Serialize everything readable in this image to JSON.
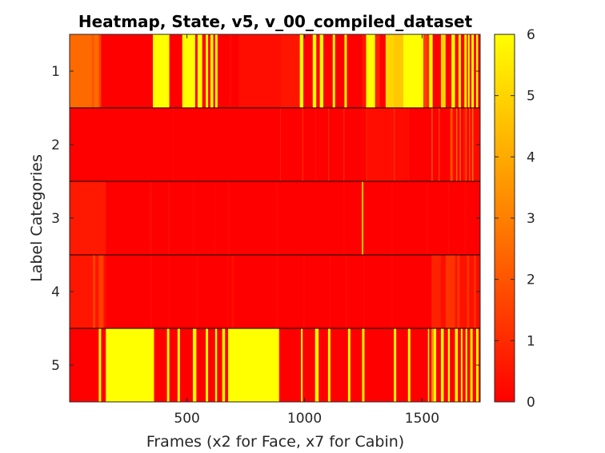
{
  "chart_data": {
    "type": "heatmap",
    "title": "Heatmap, State, v5, v_00_compiled_dataset",
    "xlabel": "Frames (x2 for Face, x7 for Cabin)",
    "ylabel": "Label Categories",
    "x_range": [
      1,
      1747
    ],
    "x_ticks": [
      500,
      1000,
      1500
    ],
    "x_tick_labels": [
      "500",
      "1000",
      "1500"
    ],
    "y_categories": [
      "1",
      "2",
      "3",
      "4",
      "5"
    ],
    "colorbar": {
      "range": [
        0,
        6
      ],
      "ticks": [
        0,
        1,
        2,
        3,
        4,
        5,
        6
      ],
      "tick_labels": [
        "0",
        "1",
        "2",
        "3",
        "4",
        "5",
        "6"
      ],
      "colormap": "autumn",
      "color_low": "#ff0000",
      "color_high": "#ffff00"
    },
    "rows": [
      {
        "category": "1",
        "segments": [
          [
            1,
            2.5
          ],
          [
            95,
            2.0
          ],
          [
            105,
            2.5
          ],
          [
            125,
            1.5
          ],
          [
            135,
            0
          ],
          [
            355,
            6
          ],
          [
            365,
            6
          ],
          [
            425,
            0
          ],
          [
            480,
            6
          ],
          [
            535,
            0
          ],
          [
            545,
            6
          ],
          [
            565,
            0
          ],
          [
            580,
            6
          ],
          [
            590,
            0
          ],
          [
            600,
            6
          ],
          [
            612,
            0
          ],
          [
            620,
            6
          ],
          [
            630,
            0
          ],
          [
            680,
            0.2
          ],
          [
            690,
            0
          ],
          [
            720,
            0.3
          ],
          [
            900,
            0.5
          ],
          [
            980,
            6
          ],
          [
            995,
            0
          ],
          [
            1035,
            6
          ],
          [
            1050,
            0
          ],
          [
            1065,
            6
          ],
          [
            1080,
            0
          ],
          [
            1120,
            6
          ],
          [
            1130,
            0
          ],
          [
            1170,
            6
          ],
          [
            1180,
            0
          ],
          [
            1245,
            0.5
          ],
          [
            1262,
            6
          ],
          [
            1280,
            6
          ],
          [
            1300,
            0.8
          ],
          [
            1320,
            0
          ],
          [
            1345,
            5
          ],
          [
            1380,
            4.7
          ],
          [
            1420,
            6
          ],
          [
            1505,
            1.5
          ],
          [
            1520,
            1.0
          ],
          [
            1530,
            6
          ],
          [
            1545,
            0
          ],
          [
            1580,
            5
          ],
          [
            1600,
            0
          ],
          [
            1625,
            6
          ],
          [
            1640,
            0
          ],
          [
            1655,
            6
          ],
          [
            1665,
            0
          ],
          [
            1680,
            6
          ],
          [
            1690,
            0
          ],
          [
            1695,
            6
          ],
          [
            1702,
            0
          ],
          [
            1710,
            6
          ],
          [
            1720,
            0
          ],
          [
            1730,
            6
          ],
          [
            1738,
            0
          ]
        ]
      },
      {
        "category": "2",
        "segments": [
          [
            1,
            0
          ],
          [
            441,
            0.2
          ],
          [
            444,
            0
          ],
          [
            896,
            0.8
          ],
          [
            899,
            0
          ],
          [
            990,
            0.8
          ],
          [
            995,
            0
          ],
          [
            1045,
            0.3
          ],
          [
            1050,
            0
          ],
          [
            1100,
            0.8
          ],
          [
            1105,
            0
          ],
          [
            1165,
            0.8
          ],
          [
            1170,
            0
          ],
          [
            1245,
            0.2
          ],
          [
            1250,
            0
          ],
          [
            1262,
            1.0
          ],
          [
            1265,
            0.3
          ],
          [
            1380,
            1.0
          ],
          [
            1385,
            0.2
          ],
          [
            1410,
            0.4
          ],
          [
            1415,
            0.2
          ],
          [
            1440,
            0.4
          ],
          [
            1445,
            0
          ],
          [
            1540,
            2.0
          ],
          [
            1545,
            0
          ],
          [
            1570,
            1.5
          ],
          [
            1575,
            0
          ],
          [
            1620,
            2.0
          ],
          [
            1630,
            0.2
          ],
          [
            1645,
            2.5
          ],
          [
            1650,
            0
          ],
          [
            1660,
            2.5
          ],
          [
            1665,
            0
          ],
          [
            1675,
            0.5
          ],
          [
            1685,
            2.0
          ],
          [
            1690,
            0
          ],
          [
            1700,
            2.0
          ],
          [
            1705,
            0
          ],
          [
            1712,
            2.5
          ],
          [
            1718,
            0.2
          ]
        ]
      },
      {
        "category": "3",
        "segments": [
          [
            1,
            0.6
          ],
          [
            155,
            0
          ],
          [
            342,
            0.2
          ],
          [
            350,
            0
          ],
          [
            420,
            0.2
          ],
          [
            425,
            0
          ],
          [
            525,
            0.2
          ],
          [
            530,
            0
          ],
          [
            615,
            0.2
          ],
          [
            620,
            0
          ],
          [
            675,
            0.2
          ],
          [
            680,
            0
          ],
          [
            880,
            0.2
          ],
          [
            885,
            0
          ],
          [
            1165,
            0.2
          ],
          [
            1170,
            0
          ],
          [
            1244,
            5
          ],
          [
            1250,
            0
          ],
          [
            1370,
            0.2
          ],
          [
            1375,
            0
          ],
          [
            1520,
            0.2
          ],
          [
            1525,
            0
          ],
          [
            1610,
            0.2
          ],
          [
            1615,
            0
          ],
          [
            1680,
            0.2
          ],
          [
            1685,
            0
          ]
        ]
      },
      {
        "category": "4",
        "segments": [
          [
            1,
            0.5
          ],
          [
            100,
            1.5
          ],
          [
            110,
            0.5
          ],
          [
            125,
            1.5
          ],
          [
            145,
            0.4
          ],
          [
            155,
            0
          ],
          [
            345,
            0.2
          ],
          [
            350,
            0
          ],
          [
            422,
            0.2
          ],
          [
            426,
            0
          ],
          [
            540,
            0.2
          ],
          [
            545,
            0
          ],
          [
            672,
            0.2
          ],
          [
            676,
            0
          ],
          [
            690,
            0.3
          ],
          [
            700,
            0
          ],
          [
            880,
            0.2
          ],
          [
            885,
            0
          ],
          [
            995,
            0.2
          ],
          [
            1000,
            0
          ],
          [
            1105,
            0.2
          ],
          [
            1110,
            0
          ],
          [
            1175,
            0.3
          ],
          [
            1180,
            0
          ],
          [
            1250,
            0.2
          ],
          [
            1255,
            0
          ],
          [
            1370,
            0.2
          ],
          [
            1375,
            0
          ],
          [
            1540,
            0.8
          ],
          [
            1580,
            0.3
          ],
          [
            1600,
            1.2
          ],
          [
            1640,
            0.4
          ],
          [
            1650,
            1.2
          ],
          [
            1660,
            0.4
          ],
          [
            1690,
            1.2
          ],
          [
            1700,
            0.4
          ],
          [
            1720,
            1.0
          ],
          [
            1730,
            0.3
          ]
        ]
      },
      {
        "category": "5",
        "segments": [
          [
            1,
            0
          ],
          [
            125,
            6
          ],
          [
            135,
            0
          ],
          [
            155,
            6
          ],
          [
            352,
            6
          ],
          [
            360,
            0
          ],
          [
            415,
            6
          ],
          [
            425,
            0
          ],
          [
            460,
            6
          ],
          [
            470,
            0
          ],
          [
            525,
            6
          ],
          [
            540,
            0
          ],
          [
            580,
            6
          ],
          [
            590,
            0
          ],
          [
            620,
            6
          ],
          [
            628,
            0
          ],
          [
            650,
            6
          ],
          [
            662,
            0
          ],
          [
            675,
            6
          ],
          [
            892,
            0
          ],
          [
            985,
            6
          ],
          [
            992,
            0
          ],
          [
            1045,
            6
          ],
          [
            1060,
            0
          ],
          [
            1100,
            6
          ],
          [
            1110,
            0
          ],
          [
            1185,
            6
          ],
          [
            1195,
            0
          ],
          [
            1245,
            6
          ],
          [
            1255,
            0
          ],
          [
            1380,
            6
          ],
          [
            1390,
            0
          ],
          [
            1440,
            6
          ],
          [
            1450,
            0
          ],
          [
            1525,
            6
          ],
          [
            1530,
            0
          ],
          [
            1540,
            3.5
          ],
          [
            1550,
            6
          ],
          [
            1560,
            0
          ],
          [
            1580,
            6
          ],
          [
            1592,
            0
          ],
          [
            1610,
            6
          ],
          [
            1618,
            0
          ],
          [
            1640,
            6
          ],
          [
            1652,
            0
          ],
          [
            1665,
            6
          ],
          [
            1672,
            0
          ],
          [
            1685,
            6
          ],
          [
            1692,
            0
          ],
          [
            1705,
            6
          ],
          [
            1715,
            0
          ],
          [
            1730,
            6
          ],
          [
            1740,
            0
          ]
        ]
      }
    ]
  }
}
